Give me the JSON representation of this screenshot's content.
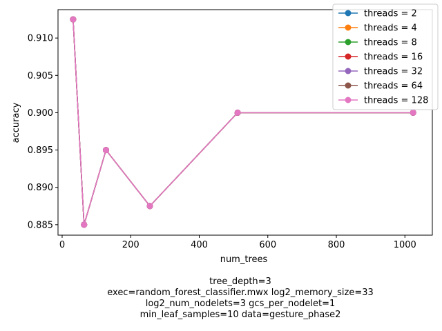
{
  "chart_data": {
    "type": "line",
    "xlabel": "num_trees",
    "ylabel": "accuracy",
    "xlim": [
      -12,
      1080
    ],
    "ylim": [
      0.8836,
      0.9138
    ],
    "xticks": [
      0,
      200,
      400,
      600,
      800,
      1000
    ],
    "yticks": [
      0.885,
      0.89,
      0.895,
      0.9,
      0.905,
      0.91
    ],
    "ytick_labels": [
      "0.885",
      "0.890",
      "0.895",
      "0.900",
      "0.905",
      "0.910"
    ],
    "legend_position": "top-right",
    "x": [
      32,
      64,
      128,
      256,
      512,
      1024
    ],
    "series": [
      {
        "name": "threads = 2",
        "color": "#1f77b4",
        "values": [
          0.9125,
          0.885,
          0.895,
          0.8875,
          0.9,
          0.9
        ]
      },
      {
        "name": "threads = 4",
        "color": "#ff7f0e",
        "values": [
          0.9125,
          0.885,
          0.895,
          0.8875,
          0.9,
          0.9
        ]
      },
      {
        "name": "threads = 8",
        "color": "#2ca02c",
        "values": [
          0.9125,
          0.885,
          0.895,
          0.8875,
          0.9,
          0.9
        ]
      },
      {
        "name": "threads = 16",
        "color": "#d62728",
        "values": [
          0.9125,
          0.885,
          0.895,
          0.8875,
          0.9,
          0.9
        ]
      },
      {
        "name": "threads = 32",
        "color": "#9467bd",
        "values": [
          0.9125,
          0.885,
          0.895,
          0.8875,
          0.9,
          0.9
        ]
      },
      {
        "name": "threads = 64",
        "color": "#8c564b",
        "values": [
          0.9125,
          0.885,
          0.895,
          0.8875,
          0.9,
          0.9
        ]
      },
      {
        "name": "threads = 128",
        "color": "#e377c2",
        "values": [
          0.9125,
          0.885,
          0.895,
          0.8875,
          0.9,
          0.9
        ]
      }
    ],
    "caption_lines": [
      "tree_depth=3",
      "exec=random_forest_classifier.mwx   log2_memory_size=33",
      "log2_num_nodelets=3   gcs_per_nodelet=1",
      "min_leaf_samples=10   data=gesture_phase2"
    ]
  }
}
